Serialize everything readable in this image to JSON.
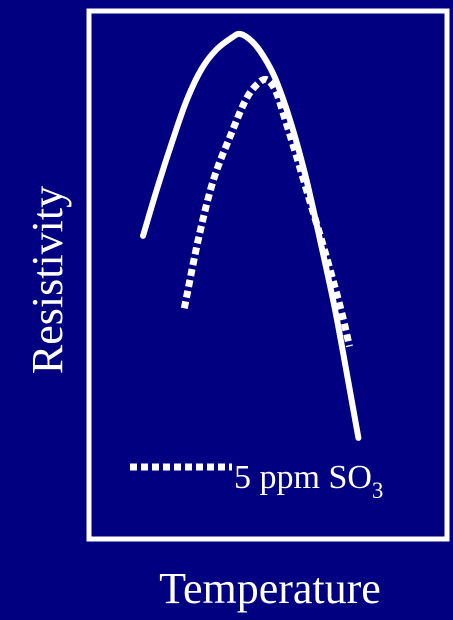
{
  "chart_data": {
    "type": "line",
    "title": "",
    "xlabel": "Temperature",
    "ylabel": "Resistivity",
    "grid": false,
    "legend": {
      "placement": "bottom-right",
      "prefix": "5 ppm SO",
      "subscript": "3"
    },
    "colors": {
      "background": "#000080",
      "foreground": "#ffffff"
    },
    "series": [
      {
        "name": "",
        "style": "solid",
        "points": [
          [
            0.0,
            0.47
          ],
          [
            0.05,
            0.6
          ],
          [
            0.1,
            0.72
          ],
          [
            0.15,
            0.83
          ],
          [
            0.2,
            0.91
          ],
          [
            0.25,
            0.96
          ],
          [
            0.3,
            0.99
          ],
          [
            0.33,
            1.0
          ],
          [
            0.37,
            0.98
          ],
          [
            0.41,
            0.94
          ],
          [
            0.45,
            0.88
          ],
          [
            0.5,
            0.77
          ],
          [
            0.55,
            0.63
          ],
          [
            0.6,
            0.46
          ],
          [
            0.65,
            0.28
          ],
          [
            0.7,
            0.07
          ],
          [
            0.73,
            -0.06
          ]
        ]
      },
      {
        "name": "5 ppm SO3",
        "style": "dotted",
        "points": [
          [
            0.14,
            0.28
          ],
          [
            0.19,
            0.47
          ],
          [
            0.24,
            0.62
          ],
          [
            0.3,
            0.74
          ],
          [
            0.35,
            0.83
          ],
          [
            0.39,
            0.87
          ],
          [
            0.42,
            0.88
          ],
          [
            0.45,
            0.85
          ],
          [
            0.48,
            0.78
          ],
          [
            0.52,
            0.68
          ],
          [
            0.57,
            0.55
          ],
          [
            0.62,
            0.42
          ],
          [
            0.67,
            0.28
          ],
          [
            0.7,
            0.18
          ]
        ]
      }
    ]
  }
}
